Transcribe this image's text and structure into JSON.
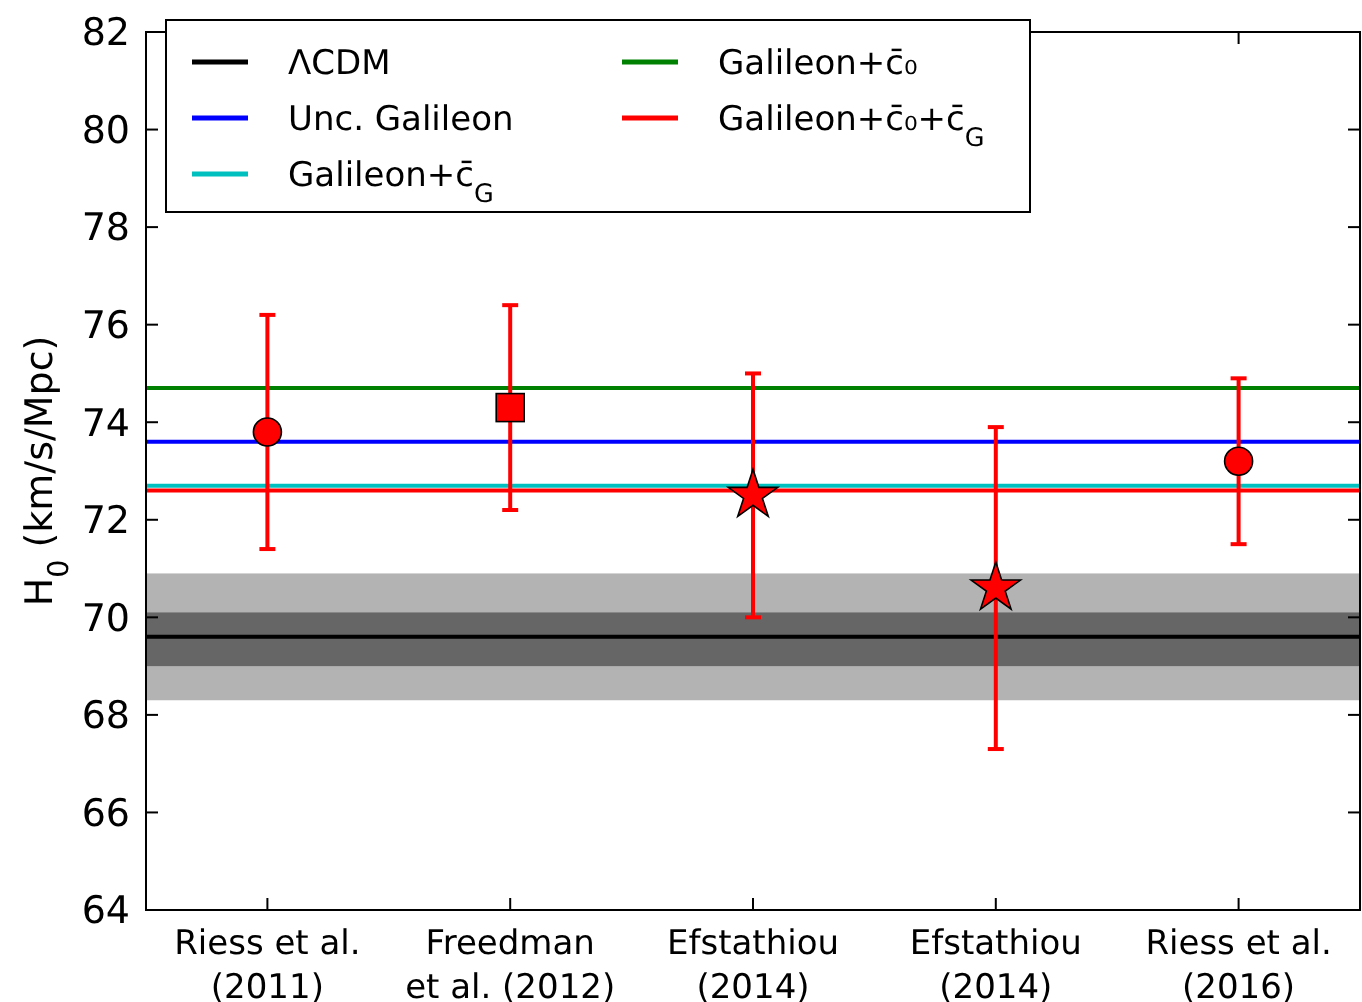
{
  "chart_data": {
    "type": "scatter",
    "ylabel": "H$_{0}$ (km/s/Mpc)",
    "categories": [
      "Riess et al.\n(2011)",
      "Freedman\net al. (2012)",
      "Efstathiou\n(2014)",
      "Efstathiou\n(2014)",
      "Riess et al.\n(2016)"
    ],
    "ylim": [
      64,
      82
    ],
    "yticks": [
      64,
      66,
      68,
      70,
      72,
      74,
      76,
      78,
      80,
      82
    ],
    "grid": false,
    "legend": "top left",
    "bands": [
      {
        "axis": "y",
        "from": 68.3,
        "to": 70.9,
        "color": "#b3b3b3"
      },
      {
        "axis": "y",
        "from": 69.0,
        "to": 70.1,
        "color": "#666666"
      }
    ],
    "ref_lines": [
      {
        "axis": "y",
        "value": 69.6,
        "label": "ΛCDM",
        "color": "#000000"
      },
      {
        "axis": "y",
        "value": 73.6,
        "label": "Unc. Galileon",
        "color": "#0000ff"
      },
      {
        "axis": "y",
        "value": 72.7,
        "label": "Galileon+c̄$_{G}$",
        "color": "#00bfbf"
      },
      {
        "axis": "y",
        "value": 74.7,
        "label": "Galileon+c̄₀",
        "color": "#008000"
      },
      {
        "axis": "y",
        "value": 72.6,
        "label": "Galileon+c̄₀+c̄$_{G}$",
        "color": "#ff0000"
      }
    ],
    "series": [
      {
        "marker": "circle",
        "color": "#ff0000",
        "values": [
          73.8,
          null,
          null,
          null,
          73.2
        ],
        "errors": [
          2.4,
          null,
          null,
          null,
          1.7
        ]
      },
      {
        "marker": "square",
        "color": "#ff0000",
        "values": [
          null,
          74.3,
          null,
          null,
          null
        ],
        "errors": [
          null,
          2.1,
          null,
          null,
          null
        ]
      },
      {
        "marker": "star",
        "color": "#ff0000",
        "values": [
          null,
          null,
          72.5,
          70.6,
          null
        ],
        "errors": [
          null,
          null,
          2.5,
          3.3,
          null
        ]
      }
    ]
  }
}
